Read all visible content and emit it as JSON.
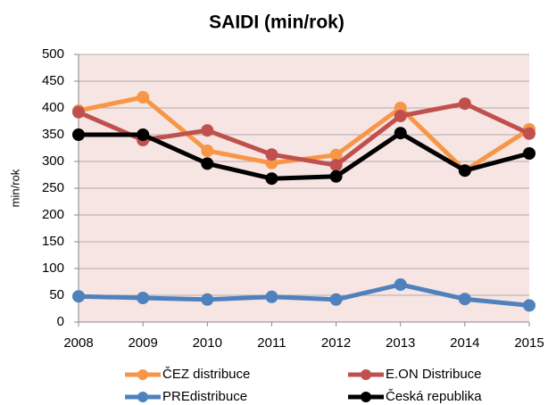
{
  "chart_data": {
    "type": "line",
    "title": "SAIDI (min/rok)",
    "y_label": "min/rok",
    "x": [
      2008,
      2009,
      2010,
      2011,
      2012,
      2013,
      2014,
      2015
    ],
    "xlim": [
      2008,
      2015
    ],
    "xticks": [
      2008,
      2009,
      2010,
      2011,
      2012,
      2013,
      2014,
      2015
    ],
    "ylim": [
      0,
      500
    ],
    "yticks": [
      0,
      50,
      100,
      150,
      200,
      250,
      300,
      350,
      400,
      450,
      500
    ],
    "grid": true,
    "legend": "bottom",
    "plot_background": "#f6e5e3",
    "series": [
      {
        "name": "ČEZ distribuce",
        "color": "#f79646",
        "values": [
          395,
          420,
          320,
          297,
          312,
          400,
          283,
          360
        ]
      },
      {
        "name": "E.ON Distribuce",
        "color": "#c0504d",
        "values": [
          392,
          340,
          358,
          313,
          293,
          385,
          408,
          352
        ]
      },
      {
        "name": "PREdistribuce",
        "color": "#4f81bd",
        "values": [
          48,
          45,
          42,
          47,
          42,
          70,
          43,
          31
        ]
      },
      {
        "name": "Česká republika",
        "color": "#000000",
        "values": [
          350,
          350,
          296,
          268,
          272,
          353,
          283,
          315
        ]
      }
    ]
  }
}
